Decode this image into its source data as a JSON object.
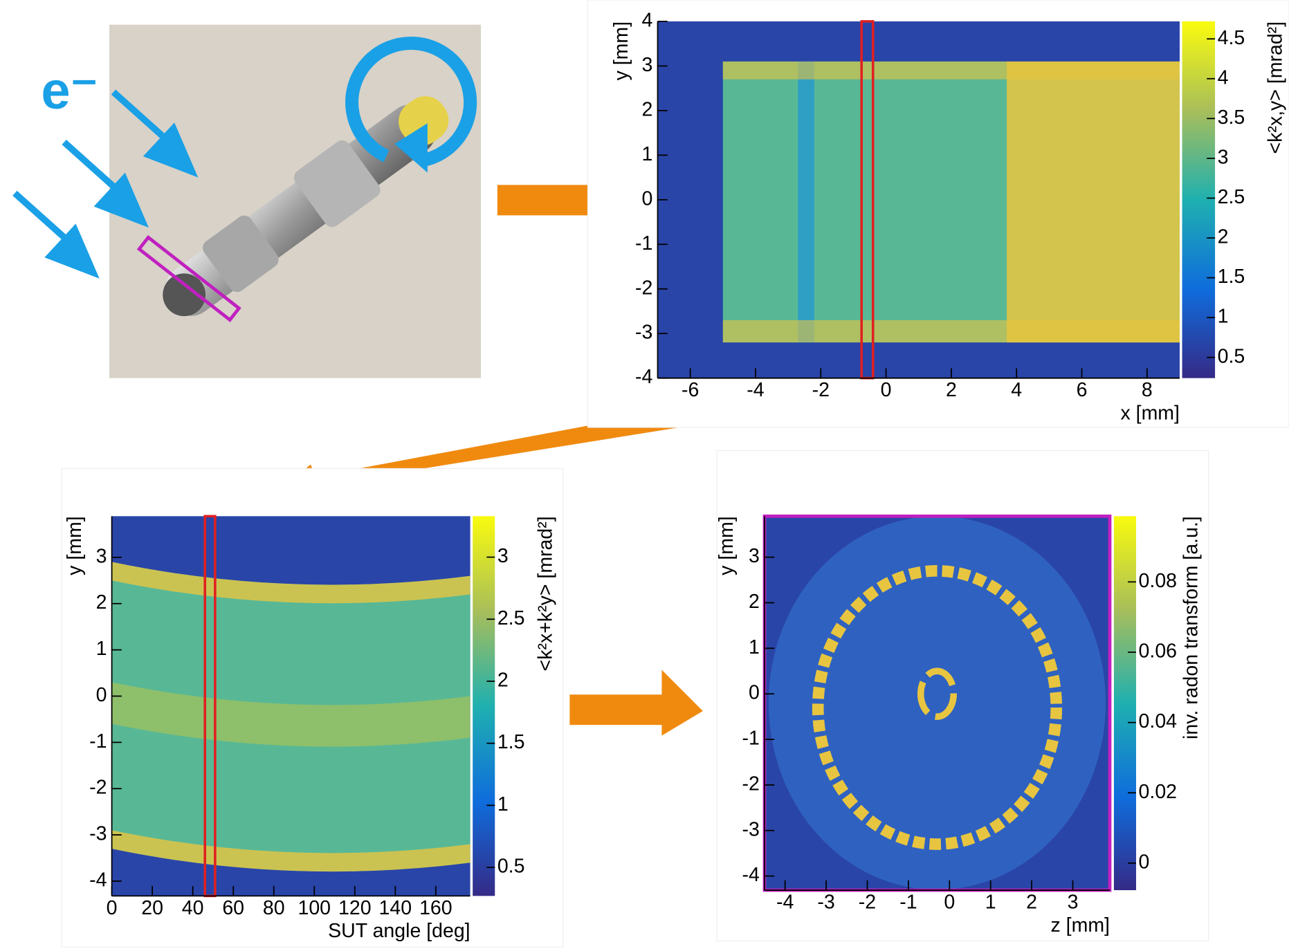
{
  "photo": {
    "label": "e⁻"
  },
  "chart_data": [
    {
      "type": "heatmap",
      "xlabel": "x [mm]",
      "ylabel": "y [mm]",
      "zlabel": "<k²x,y> [mrad²]",
      "xlim": [
        -7,
        9
      ],
      "ylim": [
        -4,
        4
      ],
      "xticks": [
        -6,
        -4,
        -2,
        0,
        2,
        4,
        6,
        8
      ],
      "yticks": [
        -4,
        -3,
        -2,
        -1,
        0,
        1,
        2,
        3,
        4
      ],
      "zlim": [
        0.24,
        4.72
      ],
      "zticks": [
        0.5,
        1,
        1.5,
        2,
        2.5,
        3,
        3.5,
        4,
        4.5
      ]
    },
    {
      "type": "heatmap",
      "xlabel": "SUT angle [deg]",
      "ylabel": "y [mm]",
      "zlabel": "<k²x+k²y> [mrad²]",
      "xlim": [
        0,
        177
      ],
      "ylim": [
        -4.32,
        3.89
      ],
      "xticks": [
        0,
        20,
        40,
        60,
        80,
        100,
        120,
        140,
        160
      ],
      "yticks": [
        -4,
        -3,
        -2,
        -1,
        0,
        1,
        2,
        3
      ],
      "zlim": [
        0.27,
        3.33
      ],
      "zticks": [
        0.5,
        1,
        1.5,
        2,
        2.5,
        3
      ]
    },
    {
      "type": "heatmap",
      "xlabel": "z [mm]",
      "ylabel": "y [mm]",
      "zlabel": "inv. radon transform [a.u.]",
      "xlim": [
        -4.5,
        3.9
      ],
      "ylim": [
        -4.31,
        3.9
      ],
      "xticks": [
        -4,
        -3,
        -2,
        -1,
        0,
        1,
        2,
        3
      ],
      "yticks": [
        -4,
        -3,
        -2,
        -1,
        0,
        1,
        2,
        3
      ],
      "zlim": [
        -0.0077,
        0.0987
      ],
      "zticks": [
        0,
        0.02,
        0.04,
        0.06,
        0.08
      ]
    }
  ]
}
